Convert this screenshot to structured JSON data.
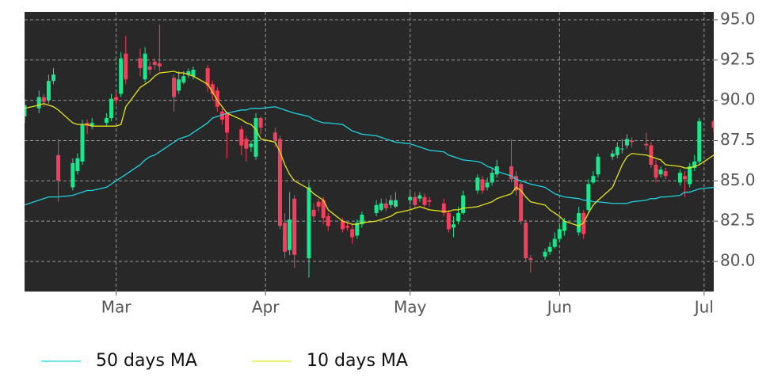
{
  "chart_data": {
    "type": "candlestick",
    "x": [
      "02-10",
      "02-13",
      "02-14",
      "02-15",
      "02-16",
      "02-17",
      "02-20",
      "02-21",
      "02-22",
      "02-23",
      "02-24",
      "02-27",
      "02-28",
      "03-01",
      "03-02",
      "03-03",
      "03-06",
      "03-07",
      "03-08",
      "03-09",
      "03-10",
      "03-13",
      "03-14",
      "03-15",
      "03-16",
      "03-17",
      "03-20",
      "03-21",
      "03-22",
      "03-23",
      "03-24",
      "03-27",
      "03-28",
      "03-29",
      "03-30",
      "03-31",
      "04-03",
      "04-04",
      "04-05",
      "04-06",
      "04-07",
      "04-10",
      "04-11",
      "04-12",
      "04-13",
      "04-14",
      "04-17",
      "04-18",
      "04-19",
      "04-20",
      "04-21",
      "04-24",
      "04-25",
      "04-26",
      "04-27",
      "04-28",
      "05-01",
      "05-02",
      "05-03",
      "05-04",
      "05-05",
      "05-08",
      "05-09",
      "05-10",
      "05-11",
      "05-12",
      "05-15",
      "05-16",
      "05-17",
      "05-18",
      "05-19",
      "05-22",
      "05-23",
      "05-24",
      "05-25",
      "05-26",
      "05-29",
      "05-30",
      "05-31",
      "06-01",
      "06-02",
      "06-05",
      "06-06",
      "06-07",
      "06-08",
      "06-09",
      "06-12",
      "06-13",
      "06-14",
      "06-15",
      "06-16",
      "06-19",
      "06-20",
      "06-21",
      "06-22",
      "06-23",
      "06-26",
      "06-27",
      "06-28",
      "06-29",
      "06-30",
      "07-03"
    ],
    "open": [
      89.0,
      89.5,
      90.2,
      90.0,
      91.2,
      86.6,
      84.6,
      85.6,
      86.2,
      88.6,
      88.4,
      88.6,
      88.9,
      90.2,
      90.4,
      92.9,
      92.6,
      91.3,
      92.1,
      92.4,
      92.3,
      91.4,
      90.6,
      91.1,
      91.6,
      91.5,
      92.0,
      91.0,
      90.6,
      89.3,
      89.2,
      88.2,
      87.6,
      87.1,
      86.5,
      88.9,
      88.0,
      87.6,
      82.4,
      80.7,
      83.9,
      80.2,
      83.2,
      83.7,
      83.8,
      82.8,
      82.5,
      82.2,
      82.0,
      81.6,
      82.3,
      83.0,
      83.2,
      83.6,
      83.5,
      83.4,
      83.8,
      84.0,
      83.9,
      84.0,
      83.8,
      83.6,
      83.0,
      82.1,
      82.5,
      83.0,
      84.4,
      85.1,
      84.6,
      84.9,
      85.4,
      85.9,
      85.3,
      84.8,
      82.4,
      80.2,
      80.3,
      80.6,
      80.9,
      81.4,
      81.9,
      81.8,
      83.0,
      83.2,
      84.9,
      85.4,
      86.5,
      86.6,
      87.0,
      87.2,
      87.5,
      87.3,
      87.2,
      86.0,
      85.4,
      85.6,
      84.9,
      85.3,
      84.8,
      85.8,
      86.2,
      88.7
    ],
    "high": [
      90.1,
      90.6,
      90.4,
      91.6,
      92.0,
      87.6,
      86.4,
      86.7,
      88.8,
      88.8,
      88.9,
      89.2,
      90.4,
      90.5,
      93.0,
      94.0,
      93.2,
      93.3,
      92.4,
      92.6,
      94.7,
      91.6,
      91.8,
      91.8,
      92.0,
      92.1,
      92.2,
      91.2,
      90.8,
      89.5,
      89.3,
      88.4,
      87.8,
      87.5,
      89.2,
      89.0,
      88.3,
      87.8,
      83.0,
      84.3,
      84.1,
      84.9,
      83.6,
      83.9,
      84.0,
      83.0,
      82.7,
      82.4,
      82.3,
      82.6,
      83.1,
      83.8,
      83.9,
      83.9,
      84.1,
      84.3,
      84.3,
      84.3,
      84.3,
      84.2,
      84.0,
      83.9,
      83.2,
      82.8,
      83.4,
      84.4,
      85.4,
      85.3,
      85.2,
      85.8,
      86.3,
      87.6,
      85.6,
      85.0,
      82.6,
      80.4,
      80.8,
      81.2,
      81.8,
      82.3,
      82.7,
      83.4,
      83.2,
      85.1,
      85.6,
      86.7,
      86.9,
      87.4,
      87.6,
      87.9,
      87.7,
      88.0,
      87.4,
      86.3,
      85.9,
      85.8,
      85.7,
      85.6,
      86.1,
      86.6,
      88.9,
      88.8
    ],
    "low": [
      88.6,
      89.2,
      89.6,
      89.8,
      91.0,
      83.7,
      84.4,
      85.4,
      86.0,
      87.9,
      88.2,
      88.4,
      88.7,
      89.7,
      90.2,
      91.0,
      91.5,
      91.1,
      91.6,
      91.9,
      91.8,
      89.3,
      90.4,
      91.0,
      91.4,
      91.3,
      90.5,
      90.0,
      89.3,
      88.5,
      86.4,
      86.6,
      86.2,
      86.8,
      86.3,
      87.9,
      87.1,
      82.0,
      80.2,
      80.4,
      79.6,
      79.0,
      82.6,
      83.1,
      82.3,
      81.9,
      81.8,
      81.9,
      81.1,
      81.4,
      82.1,
      82.8,
      83.1,
      83.1,
      83.3,
      83.3,
      83.5,
      83.3,
      83.7,
      83.3,
      83.4,
      82.8,
      81.8,
      81.5,
      82.3,
      82.9,
      84.2,
      84.2,
      84.4,
      84.7,
      85.2,
      84.9,
      84.1,
      82.3,
      80.0,
      79.3,
      80.1,
      80.4,
      80.8,
      81.2,
      81.6,
      81.6,
      81.4,
      83.0,
      84.8,
      85.2,
      86.3,
      86.4,
      86.7,
      87.0,
      87.1,
      86.9,
      85.8,
      84.9,
      85.2,
      85.1,
      84.7,
      84.0,
      84.6,
      85.6,
      86.0,
      88.0
    ],
    "close": [
      89.7,
      90.2,
      89.9,
      91.2,
      91.6,
      85.0,
      86.1,
      86.4,
      88.5,
      88.4,
      88.6,
      88.9,
      90.1,
      90.0,
      92.6,
      91.3,
      92.0,
      92.9,
      91.9,
      92.2,
      92.1,
      90.2,
      91.3,
      91.5,
      91.8,
      91.9,
      90.9,
      90.4,
      89.6,
      88.8,
      88.0,
      87.2,
      87.0,
      87.3,
      88.9,
      88.3,
      87.5,
      82.2,
      80.6,
      82.6,
      80.4,
      84.6,
      82.8,
      83.4,
      82.7,
      82.2,
      82.0,
      82.1,
      81.5,
      82.4,
      82.9,
      83.5,
      83.6,
      83.3,
      83.8,
      83.8,
      84.0,
      83.5,
      84.1,
      83.5,
      83.7,
      83.0,
      82.0,
      82.3,
      83.0,
      84.1,
      85.2,
      84.4,
      84.9,
      85.5,
      85.9,
      85.1,
      84.4,
      82.5,
      80.2,
      80.1,
      80.6,
      80.9,
      81.4,
      82.0,
      82.5,
      83.0,
      81.7,
      84.8,
      85.3,
      86.5,
      86.7,
      87.1,
      87.0,
      87.6,
      87.4,
      87.2,
      86.0,
      85.2,
      85.7,
      85.3,
      85.5,
      85.1,
      85.9,
      86.2,
      88.7,
      88.3
    ],
    "up_color": "#1ae68c",
    "down_color": "#f2405c",
    "series": [
      {
        "name": "50 days MA",
        "color": "#1fd3e0",
        "values": [
          83.5,
          83.8,
          83.9,
          84.0,
          84.0,
          84.0,
          84.1,
          84.2,
          84.3,
          84.4,
          84.4,
          84.6,
          84.8,
          85.0,
          85.2,
          85.4,
          86.0,
          86.3,
          86.5,
          86.6,
          86.8,
          87.4,
          87.6,
          87.7,
          87.8,
          88.0,
          88.6,
          88.9,
          89.0,
          89.1,
          89.2,
          89.4,
          89.4,
          89.5,
          89.5,
          89.5,
          89.6,
          89.5,
          89.4,
          89.3,
          89.2,
          89.0,
          88.8,
          88.7,
          88.6,
          88.6,
          88.5,
          88.3,
          88.1,
          88.0,
          87.9,
          87.8,
          87.7,
          87.6,
          87.5,
          87.4,
          87.3,
          87.2,
          87.1,
          87.0,
          86.9,
          86.8,
          86.6,
          86.5,
          86.4,
          86.3,
          86.2,
          86.1,
          85.9,
          85.8,
          85.6,
          85.3,
          85.1,
          85.0,
          84.9,
          84.8,
          84.6,
          84.4,
          84.2,
          84.1,
          84.0,
          83.9,
          83.8,
          83.8,
          83.7,
          83.7,
          83.6,
          83.6,
          83.6,
          83.6,
          83.7,
          83.8,
          83.9,
          83.9,
          84.0,
          84.0,
          84.1,
          84.3,
          84.3,
          84.4,
          84.5,
          84.6
        ]
      },
      {
        "name": "10 days MA",
        "color": "#e3e31c",
        "values": [
          89.5,
          89.7,
          89.8,
          89.7,
          89.6,
          89.4,
          88.6,
          88.5,
          88.5,
          88.5,
          88.4,
          88.4,
          88.4,
          88.4,
          88.5,
          89.6,
          90.8,
          91.0,
          91.2,
          91.5,
          91.7,
          91.8,
          91.7,
          91.7,
          91.6,
          91.5,
          91.0,
          90.5,
          90.0,
          89.6,
          89.2,
          88.8,
          88.6,
          88.5,
          88.2,
          87.6,
          87.4,
          86.8,
          86.0,
          85.4,
          85.0,
          84.5,
          84.2,
          84.0,
          83.8,
          83.2,
          82.5,
          82.4,
          82.3,
          82.3,
          82.4,
          82.5,
          82.6,
          82.7,
          82.8,
          83.0,
          83.2,
          83.3,
          83.4,
          83.3,
          83.2,
          83.1,
          83.1,
          83.2,
          83.2,
          83.3,
          83.4,
          83.5,
          83.6,
          83.7,
          83.9,
          84.2,
          84.6,
          84.4,
          84.0,
          83.7,
          83.5,
          83.2,
          83.0,
          82.8,
          82.5,
          82.2,
          82.4,
          83.0,
          83.5,
          83.8,
          84.6,
          85.3,
          86.0,
          86.5,
          86.7,
          86.6,
          86.5,
          86.4,
          86.3,
          86.0,
          85.9,
          85.8,
          85.8,
          85.9,
          86.0,
          86.6
        ]
      }
    ],
    "xlim": [
      "02-10",
      "07-03"
    ],
    "xticks": [
      {
        "value": "03-01",
        "label": "Mar"
      },
      {
        "value": "04-01",
        "label": "Apr"
      },
      {
        "value": "05-01",
        "label": "May"
      },
      {
        "value": "06-01",
        "label": "Jun"
      },
      {
        "value": "07-01",
        "label": "Jul"
      }
    ],
    "ylim": [
      78.13,
      95.49
    ],
    "yticks": [
      {
        "value": 80,
        "label": "80.0"
      },
      82.5,
      {
        "value": 85,
        "label": "85.0"
      },
      87.5,
      {
        "value": 90,
        "label": "90.0"
      },
      92.5,
      {
        "value": 95,
        "label": "95.0"
      }
    ],
    "grid": true,
    "legend": "bottom"
  }
}
